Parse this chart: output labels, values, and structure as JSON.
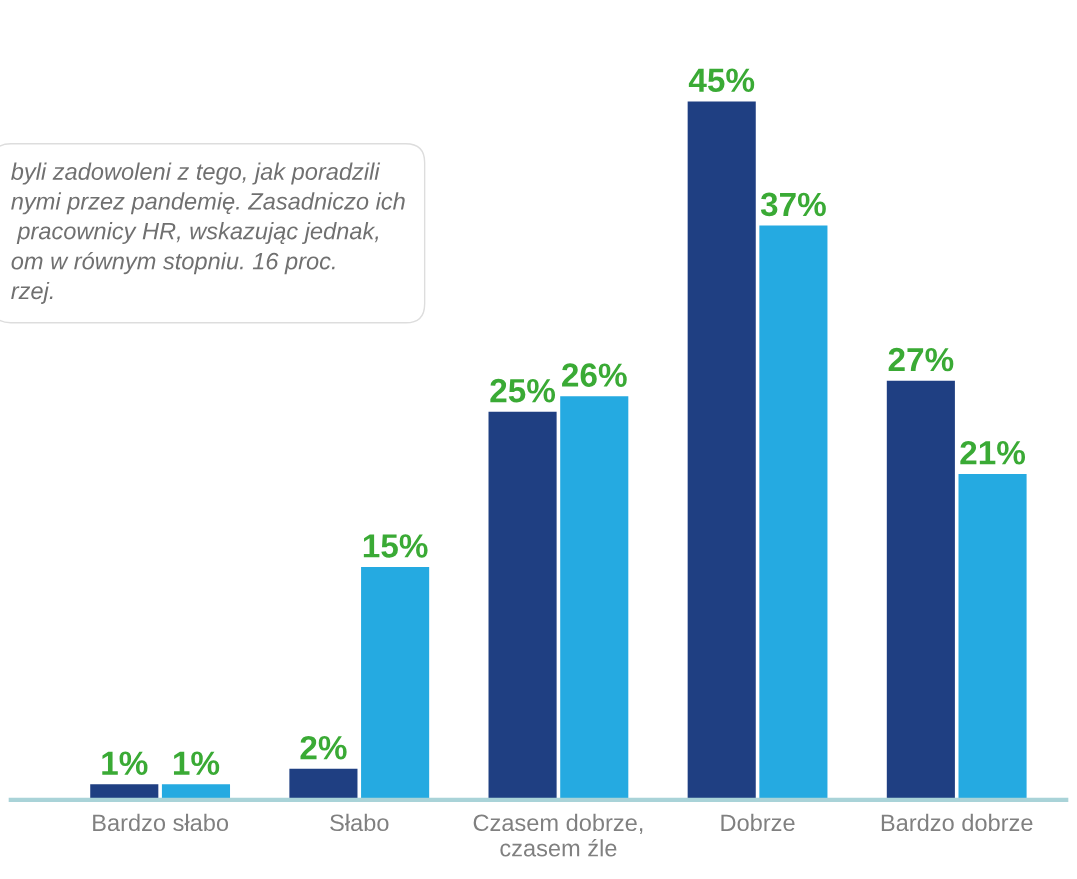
{
  "chart_data": {
    "type": "bar",
    "categories": [
      "Bardzo słabo",
      "Słabo",
      "Czasem dobrze,\nczasem źle",
      "Dobrze",
      "Bardzo dobrze"
    ],
    "series": [
      {
        "color": "#1f3f82",
        "values": [
          1,
          2,
          25,
          45,
          27
        ],
        "value_labels": [
          "1%",
          "2%",
          "25%",
          "45%",
          "27%"
        ]
      },
      {
        "color": "#25aae1",
        "values": [
          1,
          15,
          26,
          37,
          21
        ],
        "value_labels": [
          "1%",
          "15%",
          "26%",
          "37%",
          "21%"
        ]
      }
    ],
    "annotations": [
      "byli zadowoleni z tego, jak poradzili\nnymi przez pandemię. Zasadniczo ich\n pracownicy HR, wskazując jednak,\nom w równym stopniu. 16 proc.\nrzej."
    ],
    "grid": false
  }
}
